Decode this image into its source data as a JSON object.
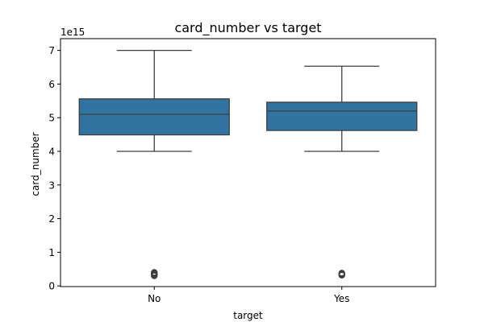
{
  "chart_data": {
    "type": "box",
    "title": "card_number vs target",
    "xlabel": "target",
    "ylabel": "card_number",
    "offset_label": "1e15",
    "categories": [
      "No",
      "Yes"
    ],
    "ylim": [
      -0.02,
      7.35
    ],
    "yticks": [
      0,
      1,
      2,
      3,
      4,
      5,
      6,
      7
    ],
    "ytick_labels": [
      "0",
      "1",
      "2",
      "3",
      "4",
      "5",
      "6",
      "7"
    ],
    "grid": false,
    "box_color": "#3274a1",
    "edge_color": "#3d3d3d",
    "boxes": [
      {
        "category": "No",
        "whisker_low": 4.0,
        "q1": 4.49,
        "median": 5.1,
        "q3": 5.56,
        "whisker_high": 7.0,
        "outliers": [
          0.3,
          0.32,
          0.34,
          0.36,
          0.38,
          0.4
        ]
      },
      {
        "category": "Yes",
        "whisker_low": 4.0,
        "q1": 4.62,
        "median": 5.2,
        "q3": 5.46,
        "whisker_high": 6.53,
        "outliers": [
          0.32,
          0.34,
          0.36,
          0.38
        ]
      }
    ]
  }
}
